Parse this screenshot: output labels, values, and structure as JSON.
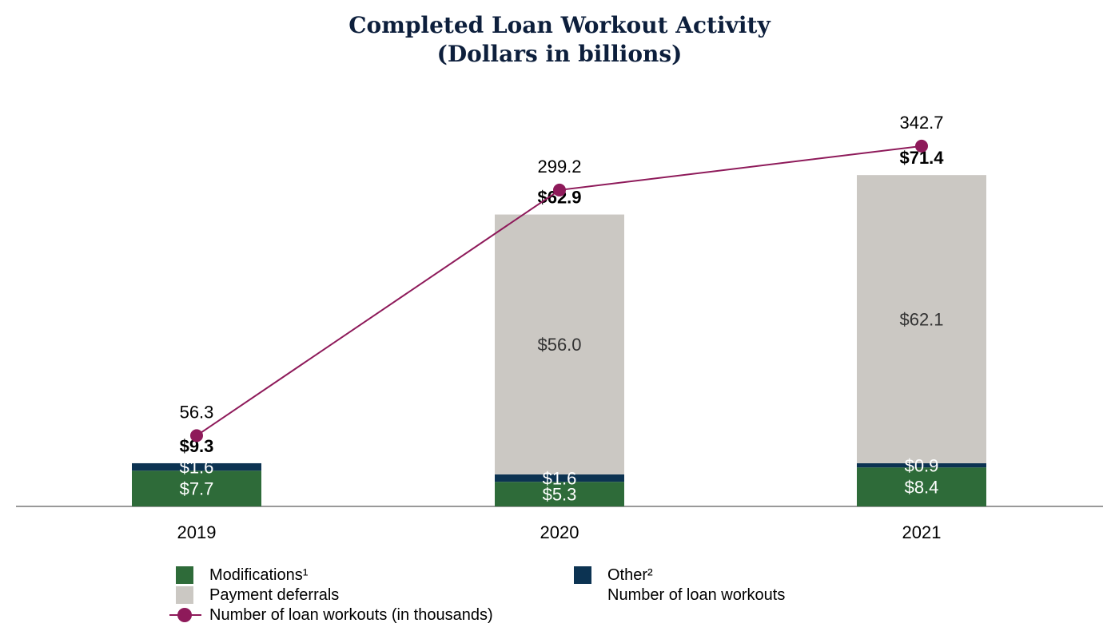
{
  "chart_data": {
    "type": "bar",
    "stacked": true,
    "title_line1": "Completed Loan Workout Activity",
    "title_line2": "(Dollars in billions)",
    "categories": [
      "2019",
      "2020",
      "2021"
    ],
    "series": [
      {
        "name": "Modifications¹",
        "color": "#2e6b39",
        "values": [
          7.7,
          5.3,
          8.4
        ],
        "labels": [
          "$7.7",
          "$5.3",
          "$8.4"
        ]
      },
      {
        "name": "Other²",
        "color": "#0c3352",
        "values": [
          1.6,
          1.6,
          0.9
        ],
        "labels": [
          "$1.6",
          "$1.6",
          "$0.9"
        ]
      },
      {
        "name": "Payment deferrals",
        "color": "#cbc8c3",
        "values": [
          0,
          56.0,
          62.1
        ],
        "labels": [
          "",
          "$56.0",
          "$62.1"
        ]
      }
    ],
    "totals": [
      9.3,
      62.9,
      71.4
    ],
    "total_labels": [
      "$9.3",
      "$62.9",
      "$71.4"
    ],
    "line_series": {
      "name": "Number of loan workouts (in thousands)",
      "color": "#8e1a5a",
      "values": [
        56.3,
        299.2,
        342.7
      ],
      "labels": [
        "56.3",
        "299.2",
        "342.7"
      ]
    },
    "extra_legend_text": "Number of loan workouts",
    "legend_position": "bottom"
  }
}
